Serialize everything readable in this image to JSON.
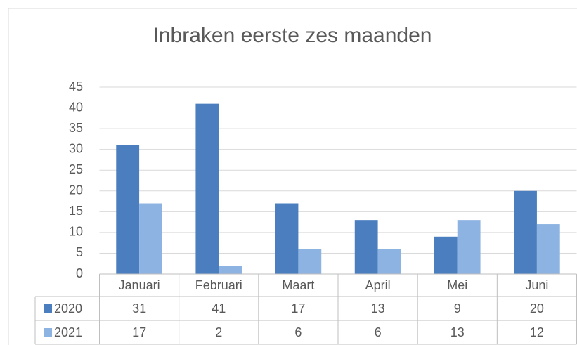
{
  "chart_data": {
    "type": "bar",
    "title": "Inbraken eerste zes maanden",
    "categories": [
      "Januari",
      "Februari",
      "Maart",
      "April",
      "Mei",
      "Juni"
    ],
    "series": [
      {
        "name": "2020",
        "color": "#4a7ebf",
        "values": [
          31,
          41,
          17,
          13,
          9,
          20
        ]
      },
      {
        "name": "2021",
        "color": "#8db3e2",
        "values": [
          17,
          2,
          6,
          6,
          13,
          12
        ]
      }
    ],
    "ylim": [
      0,
      45
    ],
    "yticks": [
      0,
      5,
      10,
      15,
      20,
      25,
      30,
      35,
      40,
      45
    ],
    "grid": true
  }
}
